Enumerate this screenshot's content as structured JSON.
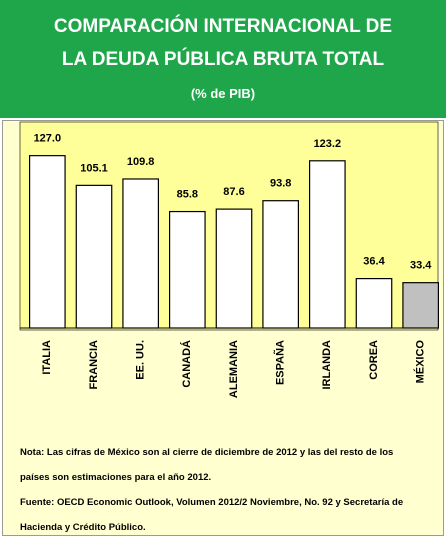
{
  "chart_data": {
    "type": "bar",
    "title": [
      "COMPARACIÓN INTERNACIONAL DE",
      "LA DEUDA PÚBLICA BRUTA TOTAL"
    ],
    "subtitle": "(% de PIB)",
    "categories": [
      "ITALIA",
      "FRANCIA",
      "EE. UU.",
      "CANADÁ",
      "ALEMANIA",
      "ESPAÑA",
      "IRLANDA",
      "COREA",
      "MÉXICO"
    ],
    "values": [
      127.0,
      105.1,
      109.8,
      85.8,
      87.6,
      93.8,
      123.2,
      36.4,
      33.4
    ],
    "value_labels": [
      "127.0",
      "105.1",
      "109.8",
      "85.8",
      "87.6",
      "93.8",
      "123.2",
      "36.4",
      "33.4"
    ],
    "colors": [
      "#ffffff",
      "#ffffff",
      "#ffffff",
      "#ffffff",
      "#ffffff",
      "#ffffff",
      "#ffffff",
      "#ffffff",
      "#c0c0c0"
    ],
    "ylim": [
      0,
      140
    ],
    "notes": [
      "Nota: Las cifras de México son al cierre de diciembre de 2012 y las del resto de los países son estimaciones para el año 2012.",
      "Fuente: OECD Economic Outlook, Volumen 2012/2 Noviembre, No. 92 y Secretaría de Hacienda y Crédito Público."
    ]
  }
}
